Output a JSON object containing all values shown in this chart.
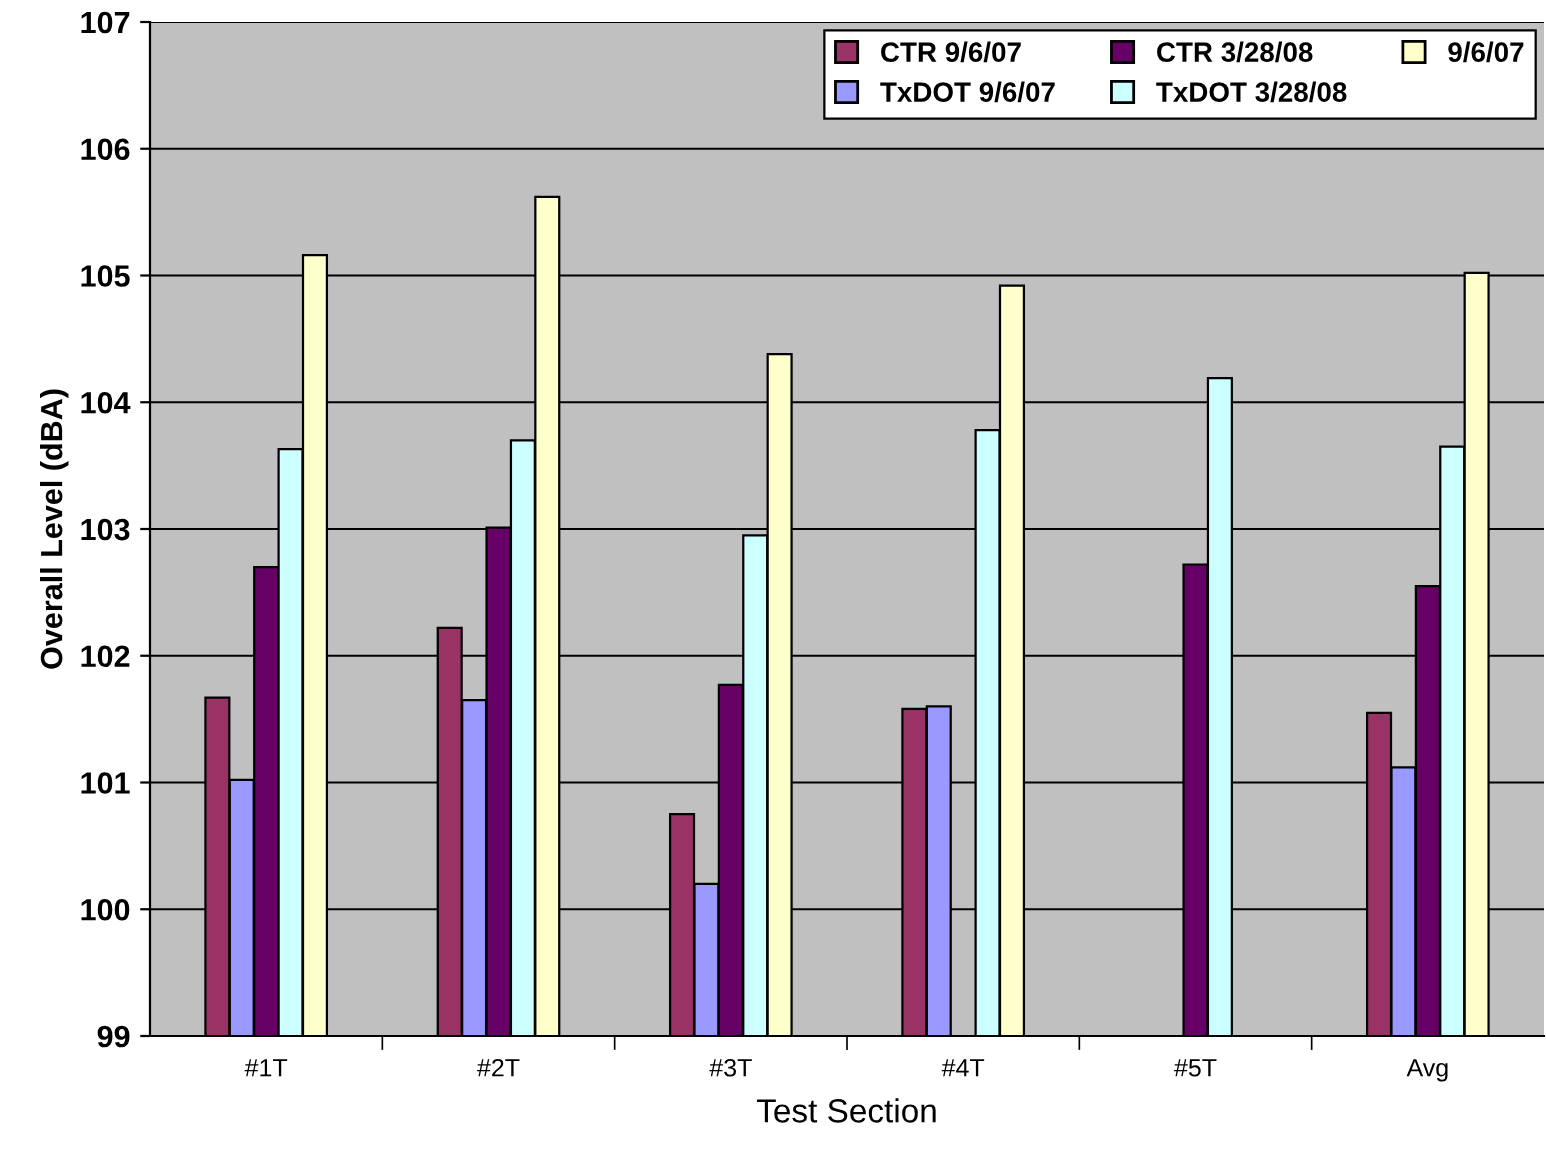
{
  "chart_data": {
    "type": "bar",
    "xlabel": "Test Section",
    "ylabel": "Overall Level (dBA)",
    "categories": [
      "#1T",
      "#2T",
      "#3T",
      "#4T",
      "#5T",
      "Avg"
    ],
    "series": [
      {
        "name": "CTR 9/6/07",
        "color": "#993366",
        "values": [
          101.67,
          102.22,
          100.75,
          101.58,
          null,
          101.55
        ]
      },
      {
        "name": "TxDOT 9/6/07",
        "color": "#9999ff",
        "values": [
          101.02,
          101.65,
          100.2,
          101.6,
          null,
          101.12
        ]
      },
      {
        "name": "CTR 3/28/08",
        "color": "#660066",
        "values": [
          102.7,
          103.01,
          101.77,
          null,
          102.72,
          102.55
        ]
      },
      {
        "name": "TxDOT 3/28/08",
        "color": "#ccffff",
        "values": [
          103.63,
          103.7,
          102.95,
          103.78,
          104.19,
          103.65
        ]
      },
      {
        "name": "9/6/07",
        "color": "#ffffcc",
        "values": [
          105.16,
          105.62,
          104.38,
          104.92,
          null,
          105.02
        ]
      }
    ],
    "ylim": [
      99,
      107
    ],
    "yticks": [
      99,
      100,
      101,
      102,
      103,
      104,
      105,
      106,
      107
    ],
    "grid": "y",
    "legend": "top right"
  }
}
